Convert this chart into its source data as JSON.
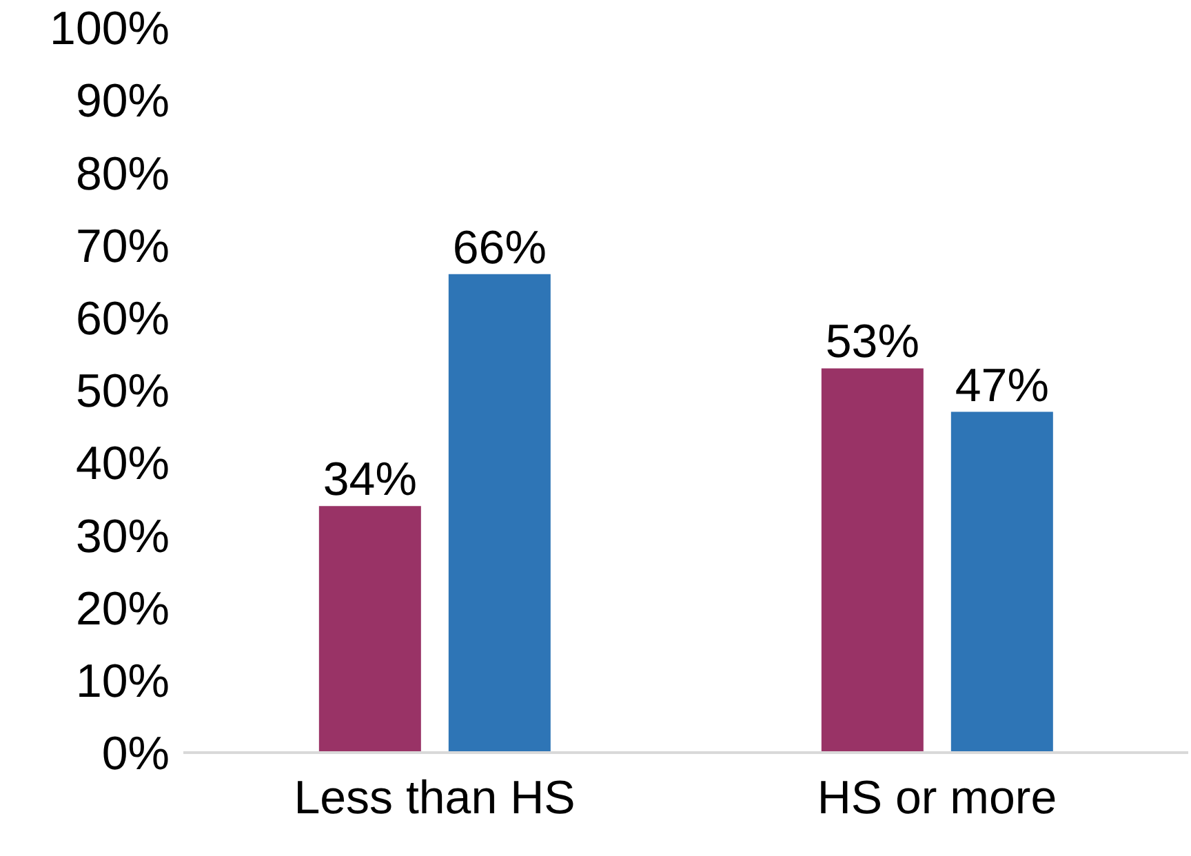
{
  "chart_data": {
    "type": "bar",
    "categories": [
      "Less than HS",
      "HS or more"
    ],
    "series": [
      {
        "color": "#993366",
        "values": [
          34,
          53
        ],
        "value_labels": [
          "34%",
          "53%"
        ]
      },
      {
        "color": "#2e75b6",
        "values": [
          66,
          47
        ],
        "value_labels": [
          "66%",
          "47%"
        ]
      }
    ],
    "ylim": [
      0,
      100
    ],
    "yticks": [
      {
        "value": 0,
        "label": "0%"
      },
      {
        "value": 10,
        "label": "10%"
      },
      {
        "value": 20,
        "label": "20%"
      },
      {
        "value": 30,
        "label": "30%"
      },
      {
        "value": 40,
        "label": "40%"
      },
      {
        "value": 50,
        "label": "50%"
      },
      {
        "value": 60,
        "label": "60%"
      },
      {
        "value": 70,
        "label": "70%"
      },
      {
        "value": 80,
        "label": "80%"
      },
      {
        "value": 90,
        "label": "90%"
      },
      {
        "value": 100,
        "label": "100%"
      }
    ],
    "grid": false,
    "legend": false
  }
}
